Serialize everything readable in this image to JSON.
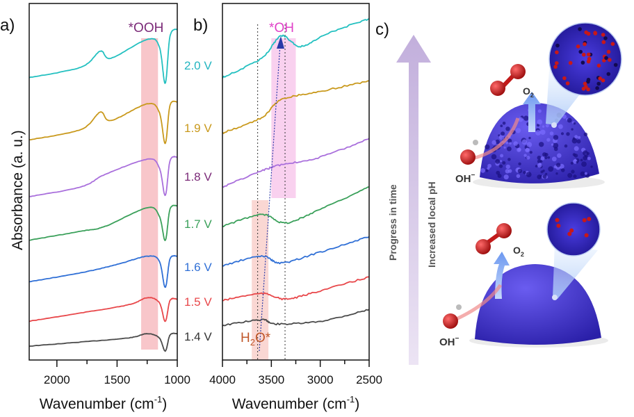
{
  "chart_data": [
    {
      "panel_label": "a)",
      "type": "line",
      "xlabel": "Wavenumber (cm",
      "xlabel_sup": "-1",
      "xlabel_close": ")",
      "ylabel": "Absorbance (a. u.)",
      "xlim": [
        2230,
        1000
      ],
      "ylim": [
        0,
        103
      ],
      "xticks": [
        2000,
        1500,
        1000
      ],
      "tick_labels": [
        "2000",
        "1500",
        "1000"
      ],
      "highlight": {
        "label": "*OOH",
        "x_range": [
          1300,
          1160
        ],
        "color": "#f6b3b8",
        "label_color": "#7b2a78"
      },
      "series": [
        {
          "name": "1.4 V",
          "color": "#4a4a4a",
          "label_color": "#333333",
          "points": [
            [
              2230,
              4
            ],
            [
              1800,
              5.2
            ],
            [
              1400,
              6.4
            ],
            [
              1250,
              7.6
            ],
            [
              1150,
              6.4
            ],
            [
              1100,
              2.6
            ],
            [
              1060,
              7.2
            ],
            [
              1000,
              7.6
            ]
          ]
        },
        {
          "name": "1.5 V",
          "color": "#e8474a",
          "label_color": "#e8474a",
          "points": [
            [
              2230,
              11.2
            ],
            [
              1800,
              13.6
            ],
            [
              1400,
              16
            ],
            [
              1250,
              18
            ],
            [
              1150,
              16.6
            ],
            [
              1100,
              11.2
            ],
            [
              1060,
              17.2
            ],
            [
              1000,
              17.6
            ]
          ]
        },
        {
          "name": "1.6 V",
          "color": "#2f6fd6",
          "label_color": "#2f6fd6",
          "points": [
            [
              2230,
              22.6
            ],
            [
              1800,
              25.2
            ],
            [
              1500,
              27.6
            ],
            [
              1250,
              30
            ],
            [
              1150,
              28.6
            ],
            [
              1100,
              21
            ],
            [
              1060,
              29.2
            ],
            [
              1000,
              30
            ]
          ]
        },
        {
          "name": "1.7 V",
          "color": "#3aa05a",
          "label_color": "#3aa05a",
          "points": [
            [
              2230,
              34.6
            ],
            [
              1800,
              37.2
            ],
            [
              1600,
              38.6
            ],
            [
              1250,
              44
            ],
            [
              1150,
              41.6
            ],
            [
              1100,
              34.6
            ],
            [
              1060,
              43.6
            ],
            [
              1000,
              44.6
            ]
          ]
        },
        {
          "name": "1.8 V",
          "color": "#a96fdc",
          "label_color": "#7b2a78",
          "points": [
            [
              2230,
              47.2
            ],
            [
              1800,
              50
            ],
            [
              1600,
              53.6
            ],
            [
              1250,
              58
            ],
            [
              1150,
              55.6
            ],
            [
              1100,
              47.6
            ],
            [
              1060,
              57.6
            ],
            [
              1000,
              58.6
            ]
          ]
        },
        {
          "name": "1.9 V",
          "color": "#c9991c",
          "label_color": "#c9991c",
          "points": [
            [
              2230,
              63.6
            ],
            [
              1800,
              66.6
            ],
            [
              1640,
              71.6
            ],
            [
              1550,
              69.2
            ],
            [
              1250,
              74
            ],
            [
              1150,
              71.6
            ],
            [
              1100,
              62.6
            ],
            [
              1060,
              73.6
            ],
            [
              1000,
              74.6
            ]
          ]
        },
        {
          "name": "2.0 V",
          "color": "#23c0c0",
          "label_color": "#23b5c0",
          "points": [
            [
              2230,
              81.6
            ],
            [
              1800,
              84.6
            ],
            [
              1640,
              89.2
            ],
            [
              1550,
              87.2
            ],
            [
              1250,
              92.6
            ],
            [
              1150,
              90.6
            ],
            [
              1100,
              80
            ],
            [
              1060,
              93.6
            ],
            [
              1000,
              95.6
            ]
          ]
        }
      ]
    },
    {
      "panel_label": "b)",
      "type": "line",
      "xlabel": "Wavenumber (cm",
      "xlabel_sup": "-1",
      "xlabel_close": ")",
      "xlim": [
        4000,
        2500
      ],
      "ylim": [
        0,
        103
      ],
      "xticks": [
        4000,
        3500,
        3000,
        2500
      ],
      "tick_labels": [
        "4000",
        "3500",
        "3000",
        "2500"
      ],
      "highlights": [
        {
          "label": "*OH",
          "x_range": [
            3500,
            3250
          ],
          "color": "#f7c2ea",
          "label_color": "#e040c8"
        },
        {
          "label": "H",
          "label_sub": "2",
          "label_rest": "O*",
          "x_range": [
            3700,
            3530
          ],
          "color": "#f8c9c4",
          "label_color": "#c0572a"
        }
      ],
      "dotted_lines_x": [
        3640,
        3360
      ],
      "series": [
        {
          "name": "1.4 V",
          "color": "#4a4a4a",
          "points": [
            [
              4000,
              10
            ],
            [
              3600,
              11.6
            ],
            [
              3450,
              10.4
            ],
            [
              3000,
              11.2
            ],
            [
              2500,
              14.6
            ]
          ]
        },
        {
          "name": "1.5 V",
          "color": "#e8474a",
          "points": [
            [
              4000,
              17.2
            ],
            [
              3600,
              19.2
            ],
            [
              3350,
              17.6
            ],
            [
              3000,
              20
            ],
            [
              2500,
              24
            ]
          ]
        },
        {
          "name": "1.6 V",
          "color": "#2f6fd6",
          "points": [
            [
              4000,
              27.2
            ],
            [
              3600,
              30
            ],
            [
              3400,
              28
            ],
            [
              3000,
              31.2
            ],
            [
              2500,
              35.6
            ]
          ]
        },
        {
          "name": "1.7 V",
          "color": "#3aa05a",
          "points": [
            [
              4000,
              38.6
            ],
            [
              3600,
              42
            ],
            [
              3350,
              39.6
            ],
            [
              3000,
              43.6
            ],
            [
              2500,
              50
            ]
          ]
        },
        {
          "name": "1.8 V",
          "color": "#a96fdc",
          "points": [
            [
              4000,
              50
            ],
            [
              3600,
              54.6
            ],
            [
              3400,
              56.4
            ],
            [
              3000,
              58.6
            ],
            [
              2500,
              64
            ]
          ]
        },
        {
          "name": "1.9 V",
          "color": "#c9991c",
          "points": [
            [
              4000,
              65.6
            ],
            [
              3600,
              70
            ],
            [
              3400,
              75.2
            ],
            [
              3000,
              77.6
            ],
            [
              2500,
              80.6
            ]
          ]
        },
        {
          "name": "2.0 V",
          "color": "#23c0c0",
          "points": [
            [
              4000,
              81.6
            ],
            [
              3600,
              87.2
            ],
            [
              3400,
              93.6
            ],
            [
              3200,
              90.6
            ],
            [
              2900,
              94.6
            ],
            [
              2500,
              98.6
            ]
          ]
        }
      ]
    }
  ],
  "panel_c": {
    "label": "c)",
    "arrow_label_1": "Progress in time",
    "arrow_label_2": "Increased local pH",
    "o2_label": "O",
    "o2_sub": "2",
    "oh_label": "OH",
    "oh_sup": "−",
    "dome_color": "#3b2fd0",
    "arrow_color": "#c8b5df"
  }
}
